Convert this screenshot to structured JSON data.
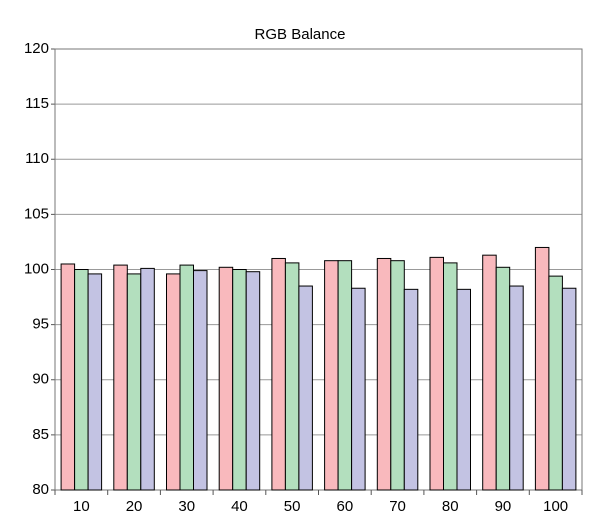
{
  "chart_data": {
    "type": "bar",
    "title": "RGB Balance",
    "categories": [
      "10",
      "20",
      "30",
      "40",
      "50",
      "60",
      "70",
      "80",
      "90",
      "100"
    ],
    "series": [
      {
        "color": "#f9b9bd",
        "values": [
          100.5,
          100.4,
          99.6,
          100.2,
          101.0,
          100.8,
          101.0,
          101.1,
          101.3,
          102.0
        ]
      },
      {
        "color": "#b3dfbe",
        "values": [
          100.0,
          99.6,
          100.4,
          100.0,
          100.6,
          100.8,
          100.8,
          100.6,
          100.2,
          99.4
        ]
      },
      {
        "color": "#c3c3e3",
        "values": [
          99.6,
          100.1,
          99.9,
          99.8,
          98.5,
          98.3,
          98.2,
          98.2,
          98.5,
          98.3
        ]
      }
    ],
    "ylim": [
      80,
      120
    ],
    "yticks": [
      80,
      85,
      90,
      95,
      100,
      105,
      110,
      115,
      120
    ],
    "grid": true
  }
}
